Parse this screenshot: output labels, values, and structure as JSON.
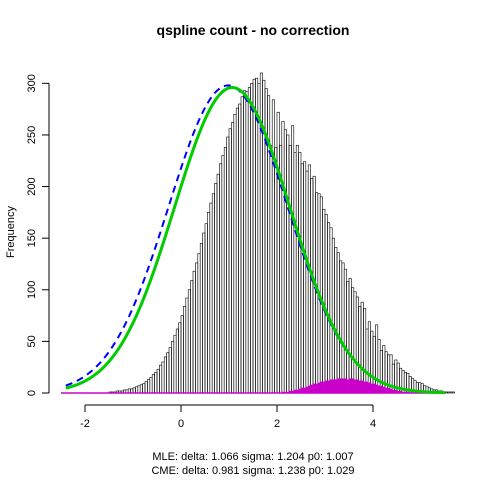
{
  "chart_data": {
    "type": "histogram",
    "title": "qspline count - no correction",
    "ylabel": "Frequency",
    "xlabel": "",
    "xlim": [
      -2.5,
      5.5
    ],
    "ylim": [
      0,
      310
    ],
    "x_ticks": [
      -2,
      0,
      2,
      4
    ],
    "x_tick_labels": [
      "-2",
      "0",
      "2",
      "4"
    ],
    "y_ticks": [
      0,
      50,
      100,
      150,
      200,
      250,
      300
    ],
    "y_tick_labels": [
      "0",
      "50",
      "100",
      "150",
      "200",
      "250",
      "300"
    ],
    "footer_lines": [
      "MLE: delta: 1.066 sigma: 1.204 p0: 1.007",
      "CME: delta: 0.981 sigma: 1.238 p0: 1.029"
    ],
    "bins": {
      "start": -2.5,
      "width": 0.05,
      "counts": [
        0,
        0,
        0,
        0,
        0,
        0,
        0,
        0,
        0,
        0,
        0,
        0,
        0,
        0,
        0,
        0,
        0,
        0,
        0,
        0,
        1,
        1,
        1,
        2,
        2,
        2,
        3,
        3,
        4,
        4,
        5,
        6,
        7,
        8,
        9,
        11,
        13,
        15,
        18,
        20,
        23,
        27,
        30,
        35,
        39,
        44,
        50,
        56,
        62,
        68,
        75,
        84,
        92,
        100,
        109,
        118,
        126,
        135,
        145,
        155,
        164,
        175,
        184,
        193,
        203,
        212,
        222,
        230,
        238,
        248,
        256,
        262,
        270,
        276,
        280,
        287,
        293,
        292,
        296,
        300,
        304,
        305,
        300,
        310,
        303,
        295,
        288,
        240,
        284,
        238,
        272,
        240,
        263,
        255,
        250,
        240,
        259,
        233,
        240,
        233,
        222,
        224,
        215,
        221,
        208,
        210,
        194,
        193,
        190,
        178,
        173,
        165,
        160,
        150,
        141,
        136,
        128,
        126,
        120,
        108,
        111,
        102,
        98,
        93,
        84,
        88,
        82,
        62,
        69,
        60,
        55,
        66,
        52,
        41,
        46,
        40,
        37,
        37,
        28,
        32,
        29,
        24,
        22,
        20,
        19,
        16,
        14,
        12,
        10,
        10,
        9,
        7,
        6,
        5,
        4,
        3,
        3,
        2,
        2,
        1,
        1,
        1,
        1,
        1,
        0,
        0,
        0,
        0,
        0,
        0
      ]
    },
    "magenta_bins": {
      "start": 2.0,
      "width": 0.05,
      "counts": [
        0,
        0,
        1,
        1,
        1,
        2,
        2,
        3,
        3,
        4,
        5,
        5,
        6,
        7,
        8,
        9,
        9,
        10,
        11,
        11,
        12,
        12,
        13,
        13,
        13,
        14,
        14,
        14,
        14,
        13,
        14,
        14,
        13,
        13,
        12,
        12,
        11,
        11,
        10,
        9,
        9,
        8,
        7,
        7,
        6,
        5,
        5,
        4,
        3,
        3,
        2,
        2,
        1,
        1,
        1,
        0,
        0,
        0,
        0,
        0
      ]
    },
    "curves": [
      {
        "style": "dashed",
        "color": "#0000ff",
        "mean": 0.981,
        "sd": 1.238,
        "peak": 298
      },
      {
        "style": "solid",
        "color": "#00cc00",
        "mean": 1.066,
        "sd": 1.204,
        "peak": 296
      }
    ],
    "colors": {
      "bar_fill": "#bebebe",
      "bar_stroke": "#000000",
      "magenta": "#cc00cc",
      "baseline_magenta": "#cc00cc"
    }
  }
}
